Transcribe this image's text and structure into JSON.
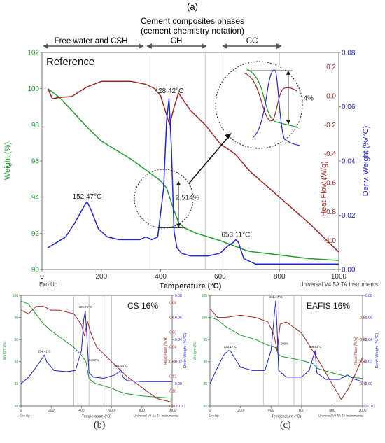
{
  "header": {
    "figure_letter_a": "(a)",
    "title_line1": "Cement composites phases",
    "title_line2": "(cement chemistry notation)",
    "phases": [
      "Free water and CSH",
      "CH",
      "CC"
    ]
  },
  "panel_labels": {
    "b": "(b)",
    "c": "(c)"
  },
  "colors": {
    "weight": "#1f9d2b",
    "heat_flow": "#a3231f",
    "deriv": "#2323e0",
    "phase_arrow": "#555555"
  },
  "chart_data": [
    {
      "id": "a",
      "type": "line",
      "title": "Reference",
      "xlabel": "Temperature (°C)",
      "ylabel_left": "Weight (%)",
      "ylabel_right1": "Heat Flow (W/g)",
      "ylabel_right2": "Deriv. Weight (%/°C)",
      "exo_label": "Exo Up",
      "instrument": "Universal V4.5A TA Instruments",
      "xlim": [
        0,
        1000
      ],
      "xticks": [
        0,
        200,
        400,
        600,
        800,
        1000
      ],
      "y_left": {
        "lim": [
          90,
          102
        ],
        "ticks": [
          90,
          92,
          94,
          96,
          98,
          100,
          102
        ]
      },
      "y_heat": {
        "lim": [
          -1.2,
          0.3
        ],
        "ticks": [
          -1.0,
          -0.8,
          -0.6,
          -0.4,
          -0.2,
          0.0,
          0.2
        ]
      },
      "y_deriv": {
        "lim": [
          0,
          0.08
        ],
        "ticks": [
          0.0,
          0.02,
          0.04,
          0.06,
          0.08
        ]
      },
      "phase_boundaries": [
        350,
        550,
        600,
        800
      ],
      "annotations": [
        {
          "text": "428.42°C",
          "x": 428,
          "y": 0.064,
          "axis": "deriv"
        },
        {
          "text": "152.47°C",
          "x": 152,
          "y": 0.025,
          "axis": "deriv"
        },
        {
          "text": "653.11°C",
          "x": 653,
          "y": 0.011,
          "axis": "deriv"
        },
        {
          "text": "2.514%",
          "x": 490,
          "y": 93.7,
          "axis": "left"
        },
        {
          "text": "2.514%",
          "x": 875,
          "y": 99.2,
          "axis": "left"
        }
      ],
      "series": [
        {
          "name": "Weight (%)",
          "axis": "left",
          "color": "#1f9d2b",
          "x": [
            20,
            60,
            100,
            150,
            200,
            250,
            300,
            350,
            400,
            420,
            440,
            460,
            480,
            520,
            560,
            600,
            640,
            680,
            700,
            750,
            800,
            850,
            900,
            1000
          ],
          "y": [
            100,
            99.5,
            98.8,
            97.9,
            97.1,
            96.6,
            96.1,
            95.5,
            94.9,
            94.5,
            93.5,
            92.6,
            92.3,
            92.0,
            91.8,
            91.6,
            91.35,
            91.1,
            91.0,
            90.9,
            90.8,
            90.7,
            90.6,
            90.5
          ]
        },
        {
          "name": "Heat Flow (W/g)",
          "axis": "heat",
          "color": "#a3231f",
          "x": [
            20,
            35,
            60,
            100,
            150,
            200,
            250,
            300,
            350,
            380,
            400,
            415,
            430,
            445,
            460,
            500,
            550,
            600,
            650,
            700,
            800,
            900,
            1000
          ],
          "y": [
            0.05,
            -0.02,
            -0.01,
            -0.005,
            0.06,
            0.1,
            0.1,
            0.1,
            0.08,
            0.05,
            0.0,
            -0.1,
            -0.2,
            -0.08,
            0.02,
            -0.1,
            -0.2,
            -0.33,
            -0.4,
            -0.52,
            -0.7,
            -0.88,
            -1.08
          ]
        },
        {
          "name": "Deriv. Weight (%/°C)",
          "axis": "deriv",
          "color": "#2323e0",
          "x": [
            20,
            50,
            80,
            110,
            140,
            152,
            165,
            190,
            220,
            260,
            300,
            330,
            350,
            370,
            390,
            410,
            420,
            428,
            436,
            445,
            455,
            470,
            500,
            560,
            600,
            630,
            645,
            653,
            662,
            680,
            720,
            800,
            900,
            1000
          ],
          "y": [
            0.008,
            0.01,
            0.012,
            0.017,
            0.023,
            0.025,
            0.022,
            0.015,
            0.012,
            0.011,
            0.011,
            0.011,
            0.012,
            0.011,
            0.012,
            0.03,
            0.055,
            0.063,
            0.045,
            0.014,
            0.008,
            0.006,
            0.005,
            0.005,
            0.006,
            0.009,
            0.01,
            0.011,
            0.01,
            0.004,
            0.002,
            0.002,
            0.002,
            0.002
          ]
        }
      ]
    },
    {
      "id": "b",
      "type": "line",
      "title": "CS 16%",
      "xlabel": "Temperature (°C)",
      "ylabel_left": "Weight (%)",
      "ylabel_right1": "Heat Flow (W/g)",
      "ylabel_right2": "Deriv. Weight (%/°C)",
      "exo_label": "Exo Up",
      "instrument": "Universal V4.5A TA Instruments",
      "xlim": [
        0,
        1000
      ],
      "xticks": [
        0,
        200,
        400,
        600,
        800,
        1000
      ],
      "y_left": {
        "lim": [
          90,
          100
        ],
        "ticks": [
          90,
          92,
          94,
          96,
          98,
          100
        ]
      },
      "y_heat": {
        "lim": [
          -0.2,
          0.1
        ],
        "ticks": [
          -0.2,
          -0.16,
          -0.12,
          -0.08,
          -0.04,
          0.0,
          0.04,
          0.08
        ]
      },
      "y_deriv": {
        "lim": [
          -0.02,
          0.08
        ],
        "ticks": [
          -0.02,
          0.0,
          0.02,
          0.04,
          0.06,
          0.08
        ]
      },
      "phase_boundaries": [
        350,
        450,
        550,
        600
      ],
      "annotations": [
        {
          "text": "425.75°C",
          "x": 425,
          "y": 0.066,
          "axis": "deriv"
        },
        {
          "text": "154.41°C",
          "x": 154,
          "y": 0.026,
          "axis": "deriv"
        },
        {
          "text": "661.54°C",
          "x": 661,
          "y": 0.013,
          "axis": "deriv"
        },
        {
          "text": "2.492%",
          "x": 480,
          "y": 93.8,
          "axis": "left"
        }
      ],
      "series": [
        {
          "name": "Weight (%)",
          "axis": "left",
          "color": "#1f9d2b",
          "x": [
            0,
            50,
            100,
            150,
            200,
            300,
            350,
            400,
            430,
            450,
            470,
            500,
            600,
            650,
            700,
            800,
            900,
            1000
          ],
          "y": [
            99.5,
            99.2,
            98.3,
            97.4,
            96.8,
            95.8,
            95.3,
            94.6,
            94,
            92.5,
            92.2,
            92.0,
            91.6,
            91.3,
            91.1,
            90.9,
            90.8,
            90.7
          ]
        },
        {
          "name": "Heat Flow (W/g)",
          "axis": "heat",
          "color": "#a3231f",
          "x": [
            0,
            50,
            100,
            150,
            200,
            250,
            300,
            350,
            400,
            420,
            440,
            460,
            500,
            600,
            700,
            800,
            900,
            1000
          ],
          "y": [
            0.06,
            0.05,
            0.07,
            0.07,
            0.06,
            0.06,
            0.055,
            0.05,
            0.02,
            -0.01,
            0.03,
            0.0,
            -0.04,
            -0.08,
            -0.12,
            -0.15,
            -0.18,
            -0.19
          ]
        },
        {
          "name": "Deriv. Weight (%/°C)",
          "axis": "deriv",
          "color": "#2323e0",
          "x": [
            0,
            50,
            100,
            140,
            154,
            170,
            220,
            300,
            360,
            400,
            415,
            425,
            435,
            450,
            480,
            550,
            620,
            650,
            661,
            675,
            700,
            800,
            900,
            1000
          ],
          "y": [
            0.0,
            0.006,
            0.015,
            0.023,
            0.026,
            0.02,
            0.012,
            0.011,
            0.012,
            0.03,
            0.058,
            0.066,
            0.045,
            0.01,
            0.006,
            0.005,
            0.008,
            0.011,
            0.013,
            0.006,
            0.003,
            0.002,
            0.002,
            0.002
          ]
        }
      ]
    },
    {
      "id": "c",
      "type": "line",
      "title": "EAFIS 16%",
      "xlabel": "Temperature (°C)",
      "ylabel_left": "Weight (%)",
      "ylabel_right1": "Heat Flow (W/g)",
      "ylabel_right2": "Deriv. Weight (%/°C)",
      "exo_label": "Exo Up",
      "instrument": "Universal V4.5A TA Instruments",
      "xlim": [
        0,
        1000
      ],
      "xticks": [
        0,
        200,
        400,
        600,
        800,
        1000
      ],
      "y_left": {
        "lim": [
          80,
          105
        ],
        "ticks": [
          80,
          85,
          90,
          95,
          100,
          105
        ]
      },
      "y_heat": {
        "lim": [
          -0.5,
          0.0
        ],
        "ticks": [
          -0.4,
          -0.3,
          -0.2,
          -0.1
        ]
      },
      "y_deriv": {
        "lim": [
          -0.02,
          0.08
        ],
        "ticks": [
          -0.02,
          0.0,
          0.02,
          0.04,
          0.06,
          0.08
        ]
      },
      "phase_boundaries": [
        350,
        450,
        550,
        600
      ],
      "annotations": [
        {
          "text": "431.17°C",
          "x": 431,
          "y": 0.075,
          "axis": "deriv"
        },
        {
          "text": "133.17°C",
          "x": 133,
          "y": 0.03,
          "axis": "deriv"
        },
        {
          "text": "689.51°C",
          "x": 689,
          "y": 0.03,
          "axis": "deriv"
        },
        {
          "text": "2.598%",
          "x": 480,
          "y": 93.2,
          "axis": "left"
        }
      ],
      "series": [
        {
          "name": "Weight (%)",
          "axis": "left",
          "color": "#1f9d2b",
          "x": [
            0,
            50,
            100,
            150,
            200,
            300,
            350,
            400,
            430,
            450,
            470,
            500,
            600,
            680,
            700,
            800,
            900,
            1000
          ],
          "y": [
            100,
            99.5,
            98,
            97,
            96,
            95,
            94.2,
            93.5,
            93.2,
            91.6,
            91.2,
            91,
            90.3,
            89.5,
            88.5,
            87.5,
            86.6,
            86.2
          ]
        },
        {
          "name": "Heat Flow (W/g)",
          "axis": "heat",
          "color": "#a3231f",
          "x": [
            0,
            50,
            100,
            200,
            300,
            380,
            420,
            440,
            460,
            500,
            600,
            700,
            800,
            860,
            900,
            950,
            1000
          ],
          "y": [
            -0.06,
            -0.1,
            -0.1,
            -0.09,
            -0.1,
            -0.12,
            -0.18,
            -0.25,
            -0.13,
            -0.12,
            -0.17,
            -0.28,
            -0.4,
            -0.47,
            -0.43,
            -0.36,
            -0.28
          ]
        },
        {
          "name": "Deriv. Weight (%/°C)",
          "axis": "deriv",
          "color": "#2323e0",
          "x": [
            0,
            40,
            90,
            120,
            133,
            150,
            200,
            280,
            360,
            400,
            420,
            431,
            440,
            450,
            500,
            600,
            650,
            680,
            689,
            700,
            760,
            850,
            900,
            950,
            1000
          ],
          "y": [
            0.0,
            0.012,
            0.026,
            0.03,
            0.03,
            0.026,
            0.015,
            0.012,
            0.012,
            0.03,
            0.06,
            0.075,
            0.05,
            0.012,
            0.006,
            0.006,
            0.012,
            0.026,
            0.03,
            0.01,
            0.004,
            0.004,
            0.008,
            0.004,
            0.002
          ]
        }
      ]
    }
  ]
}
